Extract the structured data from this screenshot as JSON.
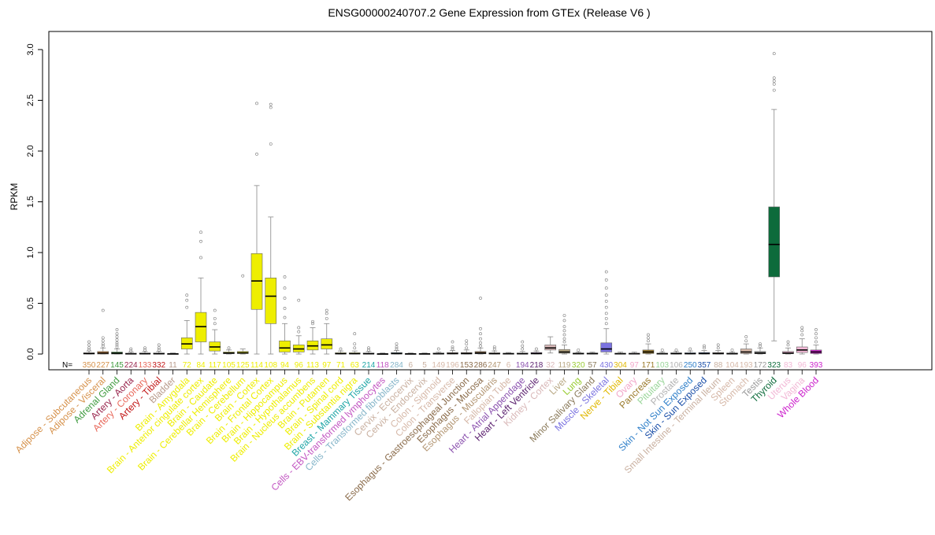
{
  "chart_data": {
    "type": "boxplot",
    "title": "ENSG00000240707.2 Gene Expression from GTEx (Release  V6 )",
    "xlabel": "",
    "ylabel": "RPKM",
    "ylim": [
      -0.03,
      3.1
    ],
    "yticks": [
      "0.0",
      "0.5",
      "1.0",
      "1.5",
      "2.0",
      "2.5",
      "3.0"
    ],
    "n_prefix": "N=",
    "grid": false,
    "categories": [
      {
        "name": "Adipose - Subcutaneous",
        "n": "350",
        "color": "#d6914a",
        "median": 0.005,
        "q1": 0.0,
        "q3": 0.012,
        "whisker_low": 0.0,
        "whisker_high": 0.03,
        "outliers": [
          0.04,
          0.06,
          0.09,
          0.12
        ]
      },
      {
        "name": "Adipose - Visceral",
        "n": "227",
        "color": "#d6914a",
        "median": 0.01,
        "q1": 0.0,
        "q3": 0.025,
        "whisker_low": 0.0,
        "whisker_high": 0.06,
        "outliers": [
          0.08,
          0.1,
          0.13,
          0.16,
          0.43
        ]
      },
      {
        "name": "Adrenal Gland",
        "n": "145",
        "color": "#3e9a3e",
        "median": 0.008,
        "q1": 0.0,
        "q3": 0.02,
        "whisker_low": 0.0,
        "whisker_high": 0.05,
        "outliers": [
          0.07,
          0.09,
          0.11,
          0.14,
          0.17,
          0.2,
          0.24
        ]
      },
      {
        "name": "Artery - Aorta",
        "n": "224",
        "color": "#99264d",
        "median": 0.002,
        "q1": 0.0,
        "q3": 0.008,
        "whisker_low": 0.0,
        "whisker_high": 0.02,
        "outliers": [
          0.03,
          0.05
        ]
      },
      {
        "name": "Artery - Coronary",
        "n": "133",
        "color": "#e8685a",
        "median": 0.003,
        "q1": 0.0,
        "q3": 0.01,
        "whisker_low": 0.0,
        "whisker_high": 0.025,
        "outliers": [
          0.04,
          0.06
        ]
      },
      {
        "name": "Artery - Tibial",
        "n": "332",
        "color": "#c21818",
        "median": 0.003,
        "q1": 0.0,
        "q3": 0.01,
        "whisker_low": 0.0,
        "whisker_high": 0.025,
        "outliers": [
          0.04,
          0.06,
          0.09
        ]
      },
      {
        "name": "Bladder",
        "n": "11",
        "color": "#b89a8a",
        "median": 0.002,
        "q1": 0.0,
        "q3": 0.005,
        "whisker_low": 0.0,
        "whisker_high": 0.01,
        "outliers": []
      },
      {
        "name": "Brain - Amygdala",
        "n": "72",
        "color": "#eeee00",
        "median": 0.1,
        "q1": 0.05,
        "q3": 0.16,
        "whisker_low": 0.0,
        "whisker_high": 0.33,
        "outliers": [
          0.46,
          0.53,
          0.58
        ]
      },
      {
        "name": "Brain - Anterior cingulate cortex",
        "n": "84",
        "color": "#eeee00",
        "median": 0.27,
        "q1": 0.12,
        "q3": 0.41,
        "whisker_low": 0.0,
        "whisker_high": 0.75,
        "outliers": [
          0.95,
          1.11,
          1.2
        ]
      },
      {
        "name": "Brain - Caudate",
        "n": "117",
        "color": "#eeee00",
        "median": 0.07,
        "q1": 0.03,
        "q3": 0.12,
        "whisker_low": 0.0,
        "whisker_high": 0.24,
        "outliers": [
          0.3,
          0.35,
          0.43
        ]
      },
      {
        "name": "Brain - Cerebellar Hemisphere",
        "n": "105",
        "color": "#eeee00",
        "median": 0.01,
        "q1": 0.003,
        "q3": 0.02,
        "whisker_low": 0.0,
        "whisker_high": 0.04,
        "outliers": [
          0.06
        ]
      },
      {
        "name": "Brain - Cerebellum",
        "n": "125",
        "color": "#eeee00",
        "median": 0.012,
        "q1": 0.004,
        "q3": 0.025,
        "whisker_low": 0.0,
        "whisker_high": 0.05,
        "outliers": [
          0.77
        ]
      },
      {
        "name": "Brain - Cortex",
        "n": "114",
        "color": "#eeee00",
        "median": 0.72,
        "q1": 0.44,
        "q3": 0.99,
        "whisker_low": 0.0,
        "whisker_high": 1.66,
        "outliers": [
          1.97,
          2.47
        ]
      },
      {
        "name": "Brain - Frontal Cortex",
        "n": "108",
        "color": "#eeee00",
        "median": 0.57,
        "q1": 0.3,
        "q3": 0.75,
        "whisker_low": 0.0,
        "whisker_high": 1.35,
        "outliers": [
          2.07,
          2.43,
          2.46
        ]
      },
      {
        "name": "Brain - Hippocampus",
        "n": "94",
        "color": "#eeee00",
        "median": 0.06,
        "q1": 0.02,
        "q3": 0.13,
        "whisker_low": 0.0,
        "whisker_high": 0.3,
        "outliers": [
          0.36,
          0.45,
          0.55,
          0.65,
          0.76
        ]
      },
      {
        "name": "Brain - Hypothalamus",
        "n": "96",
        "color": "#eeee00",
        "median": 0.05,
        "q1": 0.02,
        "q3": 0.09,
        "whisker_low": 0.0,
        "whisker_high": 0.18,
        "outliers": [
          0.22,
          0.26,
          0.53
        ]
      },
      {
        "name": "Brain - Nucleus accumbens",
        "n": "113",
        "color": "#eeee00",
        "median": 0.08,
        "q1": 0.04,
        "q3": 0.13,
        "whisker_low": 0.0,
        "whisker_high": 0.26,
        "outliers": [
          0.3,
          0.32
        ]
      },
      {
        "name": "Brain - Putamen",
        "n": "97",
        "color": "#eeee00",
        "median": 0.09,
        "q1": 0.05,
        "q3": 0.15,
        "whisker_low": 0.0,
        "whisker_high": 0.3,
        "outliers": [
          0.35,
          0.4,
          0.43
        ]
      },
      {
        "name": "Brain - Spinal cord",
        "n": "71",
        "color": "#eeee00",
        "median": 0.004,
        "q1": 0.0,
        "q3": 0.012,
        "whisker_low": 0.0,
        "whisker_high": 0.03,
        "outliers": [
          0.05
        ]
      },
      {
        "name": "Brain - Substantia nigra",
        "n": "63",
        "color": "#eeee00",
        "median": 0.004,
        "q1": 0.0,
        "q3": 0.012,
        "whisker_low": 0.0,
        "whisker_high": 0.03,
        "outliers": [
          0.06,
          0.1,
          0.2
        ]
      },
      {
        "name": "Breast - Mammary Tissue",
        "n": "214",
        "color": "#1fa6a6",
        "median": 0.003,
        "q1": 0.0,
        "q3": 0.01,
        "whisker_low": 0.0,
        "whisker_high": 0.025,
        "outliers": [
          0.04,
          0.06
        ]
      },
      {
        "name": "Cells - EBV-transformed lymphocytes",
        "n": "118",
        "color": "#c255c2",
        "median": 0.001,
        "q1": 0.0,
        "q3": 0.004,
        "whisker_low": 0.0,
        "whisker_high": 0.01,
        "outliers": []
      },
      {
        "name": "Cells - Transformed fibroblasts",
        "n": "284",
        "color": "#85b5c9",
        "median": 0.005,
        "q1": 0.0,
        "q3": 0.015,
        "whisker_low": 0.0,
        "whisker_high": 0.035,
        "outliers": [
          0.05,
          0.07,
          0.1
        ]
      },
      {
        "name": "Cervix - Ectocervix",
        "n": "6",
        "color": "#c9b0a0",
        "median": 0.002,
        "q1": 0.0,
        "q3": 0.005,
        "whisker_low": 0.0,
        "whisker_high": 0.01,
        "outliers": []
      },
      {
        "name": "Cervix - Endocervix",
        "n": "5",
        "color": "#c9b0a0",
        "median": 0.002,
        "q1": 0.0,
        "q3": 0.005,
        "whisker_low": 0.0,
        "whisker_high": 0.01,
        "outliers": []
      },
      {
        "name": "Colon - Sigmoid",
        "n": "149",
        "color": "#d6b8a8",
        "median": 0.003,
        "q1": 0.0,
        "q3": 0.01,
        "whisker_low": 0.0,
        "whisker_high": 0.02,
        "outliers": [
          0.05
        ]
      },
      {
        "name": "Colon - Transverse",
        "n": "196",
        "color": "#d6b8a8",
        "median": 0.005,
        "q1": 0.0,
        "q3": 0.015,
        "whisker_low": 0.0,
        "whisker_high": 0.035,
        "outliers": [
          0.05,
          0.07,
          0.12
        ]
      },
      {
        "name": "Esophagus - Gastroesophageal Junction",
        "n": "153",
        "color": "#8a6b4a",
        "median": 0.005,
        "q1": 0.0,
        "q3": 0.015,
        "whisker_low": 0.0,
        "whisker_high": 0.04,
        "outliers": [
          0.06,
          0.1,
          0.13
        ]
      },
      {
        "name": "Esophagus - Mucosa",
        "n": "286",
        "color": "#8a6b4a",
        "median": 0.01,
        "q1": 0.002,
        "q3": 0.025,
        "whisker_low": 0.0,
        "whisker_high": 0.06,
        "outliers": [
          0.08,
          0.11,
          0.15,
          0.2,
          0.25,
          0.55
        ]
      },
      {
        "name": "Esophagus - Muscularis",
        "n": "247",
        "color": "#b39673",
        "median": 0.004,
        "q1": 0.0,
        "q3": 0.012,
        "whisker_low": 0.0,
        "whisker_high": 0.03,
        "outliers": [
          0.05,
          0.07
        ]
      },
      {
        "name": "Fallopian Tube",
        "n": "6",
        "color": "#d6b8a8",
        "median": 0.003,
        "q1": 0.0,
        "q3": 0.008,
        "whisker_low": 0.0,
        "whisker_high": 0.015,
        "outliers": []
      },
      {
        "name": "Heart - Atrial Appendage",
        "n": "194",
        "color": "#8d54b0",
        "median": 0.003,
        "q1": 0.0,
        "q3": 0.01,
        "whisker_low": 0.0,
        "whisker_high": 0.025,
        "outliers": [
          0.05,
          0.08,
          0.12
        ]
      },
      {
        "name": "Heart - Left Ventricle",
        "n": "218",
        "color": "#5a1f6e",
        "median": 0.005,
        "q1": 0.0,
        "q3": 0.015,
        "whisker_low": 0.0,
        "whisker_high": 0.03,
        "outliers": [
          0.05
        ]
      },
      {
        "name": "Kidney - Cortex",
        "n": "32",
        "color": "#d9b8b8",
        "median": 0.06,
        "q1": 0.04,
        "q3": 0.09,
        "whisker_low": 0.01,
        "whisker_high": 0.17,
        "outliers": []
      },
      {
        "name": "Liver",
        "n": "119",
        "color": "#b8a884",
        "median": 0.02,
        "q1": 0.008,
        "q3": 0.045,
        "whisker_low": 0.0,
        "whisker_high": 0.09,
        "outliers": [
          0.12,
          0.15,
          0.19,
          0.23,
          0.27,
          0.33,
          0.38
        ]
      },
      {
        "name": "Lung",
        "n": "320",
        "color": "#99cc33",
        "median": 0.004,
        "q1": 0.0,
        "q3": 0.01,
        "whisker_low": 0.0,
        "whisker_high": 0.02,
        "outliers": [
          0.04
        ]
      },
      {
        "name": "Minor Salivary Gland",
        "n": "57",
        "color": "#8a7a5a",
        "median": 0.004,
        "q1": 0.0,
        "q3": 0.01,
        "whisker_low": 0.0,
        "whisker_high": 0.02,
        "outliers": []
      },
      {
        "name": "Muscle - Skeletal",
        "n": "430",
        "color": "#7b73e0",
        "median": 0.05,
        "q1": 0.02,
        "q3": 0.11,
        "whisker_low": 0.0,
        "whisker_high": 0.25,
        "outliers": [
          0.3,
          0.35,
          0.4,
          0.46,
          0.52,
          0.58,
          0.65,
          0.73,
          0.81
        ]
      },
      {
        "name": "Nerve - Tibial",
        "n": "304",
        "color": "#e0b800",
        "median": 0.003,
        "q1": 0.0,
        "q3": 0.008,
        "whisker_low": 0.0,
        "whisker_high": 0.02,
        "outliers": []
      },
      {
        "name": "Ovary",
        "n": "97",
        "color": "#f2a7c9",
        "median": 0.003,
        "q1": 0.0,
        "q3": 0.008,
        "whisker_low": 0.0,
        "whisker_high": 0.02,
        "outliers": []
      },
      {
        "name": "Pancreas",
        "n": "171",
        "color": "#9a7a2a",
        "median": 0.02,
        "q1": 0.005,
        "q3": 0.04,
        "whisker_low": 0.0,
        "whisker_high": 0.1,
        "outliers": [
          0.13,
          0.16,
          0.19
        ]
      },
      {
        "name": "Pituitary",
        "n": "103",
        "color": "#99d699",
        "median": 0.003,
        "q1": 0.0,
        "q3": 0.008,
        "whisker_low": 0.0,
        "whisker_high": 0.02,
        "outliers": [
          0.04
        ]
      },
      {
        "name": "Prostate",
        "n": "106",
        "color": "#b3b3b3",
        "median": 0.004,
        "q1": 0.0,
        "q3": 0.012,
        "whisker_low": 0.0,
        "whisker_high": 0.025,
        "outliers": [
          0.04
        ]
      },
      {
        "name": "Skin - Not Sun Exposed",
        "n": "250",
        "color": "#2f7fc9",
        "median": 0.004,
        "q1": 0.0,
        "q3": 0.012,
        "whisker_low": 0.0,
        "whisker_high": 0.03,
        "outliers": [
          0.05
        ]
      },
      {
        "name": "Skin - Sun Exposed",
        "n": "357",
        "color": "#1b4fa8",
        "median": 0.005,
        "q1": 0.0,
        "q3": 0.015,
        "whisker_low": 0.0,
        "whisker_high": 0.035,
        "outliers": [
          0.06,
          0.08
        ]
      },
      {
        "name": "Small Intestine - Terminal Ileum",
        "n": "88",
        "color": "#c9b0a0",
        "median": 0.005,
        "q1": 0.0,
        "q3": 0.015,
        "whisker_low": 0.0,
        "whisker_high": 0.035,
        "outliers": [
          0.06,
          0.09
        ]
      },
      {
        "name": "Spleen",
        "n": "104",
        "color": "#d6b8a8",
        "median": 0.003,
        "q1": 0.0,
        "q3": 0.01,
        "whisker_low": 0.0,
        "whisker_high": 0.02,
        "outliers": [
          0.04
        ]
      },
      {
        "name": "Stomach",
        "n": "193",
        "color": "#d6b8a8",
        "median": 0.02,
        "q1": 0.005,
        "q3": 0.05,
        "whisker_low": 0.0,
        "whisker_high": 0.1,
        "outliers": [
          0.13,
          0.17
        ]
      },
      {
        "name": "Testis",
        "n": "172",
        "color": "#999999",
        "median": 0.01,
        "q1": 0.003,
        "q3": 0.025,
        "whisker_low": 0.0,
        "whisker_high": 0.06,
        "outliers": [
          0.08,
          0.1
        ]
      },
      {
        "name": "Thyroid",
        "n": "323",
        "color": "#0d6b3b",
        "median": 1.08,
        "q1": 0.76,
        "q3": 1.45,
        "whisker_low": 0.13,
        "whisker_high": 2.41,
        "outliers": [
          2.6,
          2.66,
          2.69,
          2.72,
          2.96
        ]
      },
      {
        "name": "Uterus",
        "n": "83",
        "color": "#f2b8d6",
        "median": 0.01,
        "q1": 0.003,
        "q3": 0.025,
        "whisker_low": 0.0,
        "whisker_high": 0.06,
        "outliers": [
          0.09,
          0.12
        ]
      },
      {
        "name": "Vagina",
        "n": "96",
        "color": "#f2b8d6",
        "median": 0.04,
        "q1": 0.015,
        "q3": 0.07,
        "whisker_low": 0.0,
        "whisker_high": 0.15,
        "outliers": [
          0.19,
          0.23,
          0.26
        ]
      },
      {
        "name": "Whole Blood",
        "n": "393",
        "color": "#cc22cc",
        "median": 0.02,
        "q1": 0.005,
        "q3": 0.04,
        "whisker_low": 0.0,
        "whisker_high": 0.09,
        "outliers": [
          0.12,
          0.16,
          0.2,
          0.24
        ]
      }
    ]
  }
}
